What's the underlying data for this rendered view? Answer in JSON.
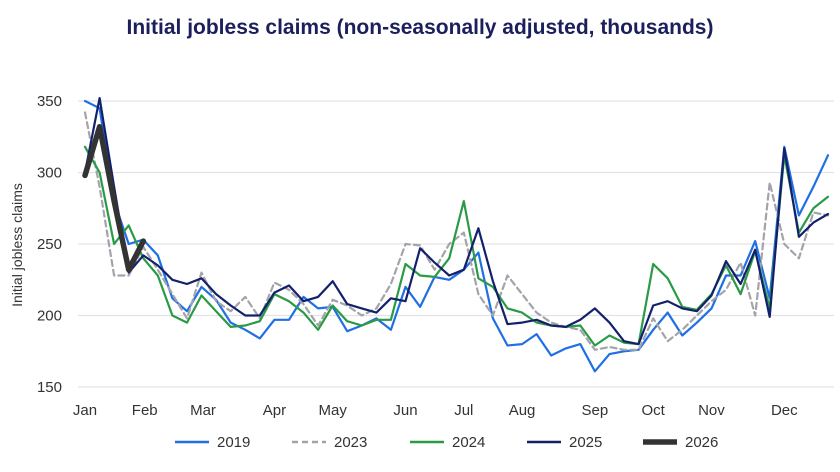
{
  "chart_data": {
    "type": "line",
    "title": "Initial jobless claims (non-seasonally adjusted, thousands)",
    "xlabel": "",
    "ylabel": "Initial jobless claims",
    "ylim": [
      150,
      350
    ],
    "yticks": [
      150,
      200,
      250,
      300,
      350
    ],
    "grid": true,
    "legend_position": "bottom",
    "x_unit": "week of year",
    "xlim": [
      1,
      52
    ],
    "xticks": [
      {
        "label": "Jan",
        "week": 1
      },
      {
        "label": "Feb",
        "week": 5.1
      },
      {
        "label": "Mar",
        "week": 9.1
      },
      {
        "label": "Apr",
        "week": 14
      },
      {
        "label": "May",
        "week": 18
      },
      {
        "label": "Jun",
        "week": 23
      },
      {
        "label": "Jul",
        "week": 27
      },
      {
        "label": "Aug",
        "week": 31
      },
      {
        "label": "Sep",
        "week": 36
      },
      {
        "label": "Oct",
        "week": 40
      },
      {
        "label": "Nov",
        "week": 44
      },
      {
        "label": "Dec",
        "week": 49
      }
    ],
    "series": [
      {
        "name": "2019",
        "color": "#1f6fe5",
        "style": "solid",
        "values": [
          350,
          345,
          280,
          250,
          253,
          242,
          212,
          203,
          220,
          211,
          195,
          190,
          184,
          197,
          197,
          213,
          205,
          206,
          189,
          193,
          198,
          190,
          220,
          206,
          227,
          225,
          232,
          244,
          198,
          179,
          180,
          187,
          172,
          177,
          180,
          161,
          173,
          175,
          176,
          190,
          202,
          186,
          195,
          205,
          228,
          228,
          252,
          212,
          318,
          270,
          290,
          312
        ]
      },
      {
        "name": "2023",
        "color": "#a3a3ab",
        "style": "dashed",
        "values": [
          342,
          290,
          228,
          228,
          248,
          232,
          215,
          198,
          230,
          210,
          203,
          213,
          198,
          223,
          218,
          208,
          193,
          211,
          207,
          200,
          205,
          222,
          250,
          249,
          232,
          250,
          258,
          215,
          200,
          228,
          215,
          202,
          195,
          192,
          190,
          176,
          178,
          176,
          176,
          198,
          182,
          190,
          200,
          210,
          218,
          237,
          200,
          293,
          250,
          240,
          272,
          270
        ]
      },
      {
        "name": "2024",
        "color": "#2a9a45",
        "style": "solid",
        "values": [
          318,
          300,
          250,
          263,
          240,
          228,
          200,
          195,
          214,
          203,
          192,
          193,
          196,
          215,
          210,
          202,
          190,
          207,
          196,
          193,
          197,
          197,
          236,
          228,
          227,
          240,
          280,
          226,
          220,
          205,
          202,
          195,
          193,
          192,
          193,
          179,
          186,
          181,
          180,
          236,
          226,
          206,
          204,
          215,
          235,
          215,
          245,
          205,
          312,
          258,
          275,
          283
        ]
      },
      {
        "name": "2025",
        "color": "#14206b",
        "style": "solid",
        "values": [
          300,
          352,
          290,
          230,
          242,
          235,
          225,
          222,
          226,
          215,
          207,
          200,
          200,
          216,
          221,
          210,
          213,
          224,
          208,
          205,
          202,
          212,
          210,
          247,
          237,
          228,
          232,
          261,
          224,
          194,
          195,
          197,
          193,
          192,
          197,
          205,
          195,
          182,
          180,
          207,
          210,
          205,
          203,
          214,
          238,
          222,
          246,
          199,
          317,
          255,
          265,
          271
        ]
      },
      {
        "name": "2026",
        "color": "#333333",
        "style": "thick",
        "values": [
          298,
          332,
          280,
          232,
          252
        ]
      }
    ]
  }
}
